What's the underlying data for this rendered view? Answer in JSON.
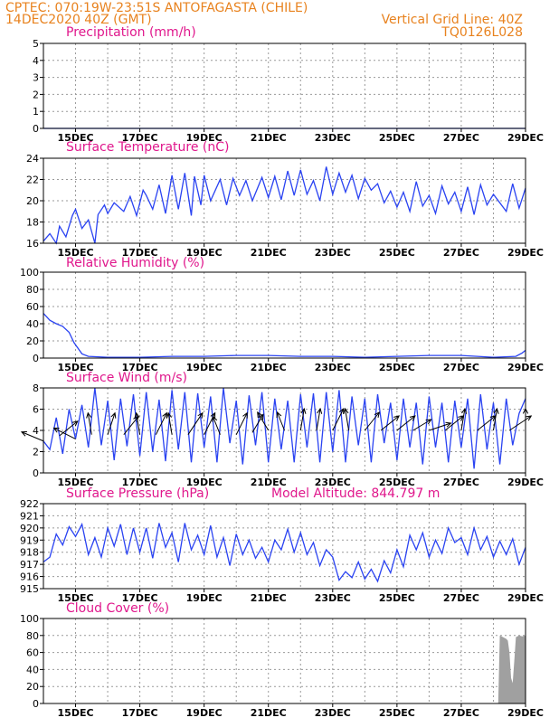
{
  "header": {
    "line1_left": "CPTEC:   070:19W-23:51S   ANTOFAGASTA (CHILE)",
    "line2_left": "14DEC2020 40Z (GMT)",
    "line1_right": "Vertical Grid Line: 40Z",
    "line2_right": "TQ0126L028"
  },
  "colors": {
    "header": "#e8821e",
    "title": "#e0178c",
    "series": "#2a43f2",
    "cloud": "#a0a0a0"
  },
  "x_axis": {
    "start_day": 14.0,
    "end_day": 29.0,
    "tick_labels": [
      "15DEC",
      "17DEC",
      "19DEC",
      "21DEC",
      "23DEC",
      "25DEC",
      "27DEC",
      "29DEC"
    ],
    "grid_step_days": 1
  },
  "chart_data": [
    {
      "type": "line",
      "title": "Precipitation (mm/h)",
      "ylim": [
        0,
        5
      ],
      "yticks": [
        "0",
        "1",
        "2",
        "3",
        "4",
        "5"
      ],
      "x": [
        14,
        29
      ],
      "values": [
        0,
        0
      ]
    },
    {
      "type": "line",
      "title": "Surface Temperature (nC)",
      "ylim": [
        16,
        24
      ],
      "yticks": [
        "16",
        "18",
        "20",
        "22",
        "24"
      ],
      "x": [
        14.0,
        14.2,
        14.4,
        14.5,
        14.7,
        14.9,
        15.0,
        15.2,
        15.4,
        15.6,
        15.7,
        15.9,
        16.0,
        16.2,
        16.5,
        16.7,
        16.9,
        17.1,
        17.2,
        17.4,
        17.6,
        17.8,
        18.0,
        18.2,
        18.4,
        18.6,
        18.7,
        18.9,
        19.0,
        19.2,
        19.5,
        19.7,
        19.9,
        20.1,
        20.3,
        20.5,
        20.8,
        21.0,
        21.2,
        21.4,
        21.6,
        21.8,
        22.0,
        22.2,
        22.4,
        22.6,
        22.8,
        23.0,
        23.2,
        23.4,
        23.6,
        23.8,
        24.0,
        24.2,
        24.4,
        24.6,
        24.8,
        25.0,
        25.2,
        25.4,
        25.6,
        25.8,
        26.0,
        26.2,
        26.4,
        26.6,
        26.8,
        27.0,
        27.2,
        27.4,
        27.6,
        27.8,
        28.0,
        28.2,
        28.4,
        28.6,
        28.8,
        29.0
      ],
      "values": [
        16.2,
        16.9,
        16.0,
        17.6,
        16.6,
        18.6,
        19.2,
        17.4,
        18.2,
        16.0,
        18.7,
        19.6,
        18.8,
        19.8,
        19.0,
        20.4,
        18.6,
        21.0,
        20.5,
        19.2,
        21.5,
        18.8,
        22.4,
        19.2,
        22.6,
        18.6,
        22.3,
        19.6,
        22.4,
        20.0,
        22.0,
        19.6,
        22.1,
        20.5,
        21.9,
        20.0,
        22.2,
        20.3,
        22.3,
        20.1,
        22.8,
        20.5,
        22.9,
        20.6,
        21.9,
        20.0,
        23.2,
        20.6,
        22.6,
        20.8,
        22.4,
        20.2,
        22.1,
        21.0,
        21.6,
        19.8,
        20.9,
        19.4,
        20.8,
        19.0,
        21.8,
        19.5,
        20.5,
        18.8,
        21.4,
        19.7,
        20.8,
        19.0,
        21.3,
        18.7,
        21.5,
        19.6,
        20.6,
        19.8,
        19.0,
        21.6,
        19.3,
        21.2
      ]
    },
    {
      "type": "line",
      "title": "Relative Humidity (%)",
      "ylim": [
        0,
        100
      ],
      "yticks": [
        "0",
        "20",
        "40",
        "60",
        "80",
        "100"
      ],
      "x": [
        14.0,
        14.2,
        14.4,
        14.6,
        14.8,
        14.95,
        15.2,
        15.4,
        16.0,
        17.0,
        18.0,
        19.0,
        20.0,
        21.0,
        22.0,
        23.0,
        24.0,
        25.0,
        26.0,
        27.0,
        28.0,
        28.7,
        28.9,
        29.0
      ],
      "values": [
        52,
        44,
        40,
        37,
        30,
        18,
        5,
        2,
        1,
        1,
        2,
        2,
        3,
        3,
        2,
        2,
        1,
        2,
        3,
        3,
        1,
        2,
        6,
        9
      ]
    },
    {
      "type": "line",
      "title": "Surface Wind (m/s)",
      "ylim": [
        0,
        8
      ],
      "yticks": [
        "0",
        "2",
        "4",
        "6",
        "8"
      ],
      "x": [
        14.0,
        14.2,
        14.4,
        14.6,
        14.8,
        15.0,
        15.2,
        15.4,
        15.6,
        15.8,
        16.0,
        16.2,
        16.4,
        16.6,
        16.8,
        17.0,
        17.2,
        17.4,
        17.6,
        17.8,
        18.0,
        18.2,
        18.4,
        18.6,
        18.8,
        19.0,
        19.2,
        19.4,
        19.6,
        19.8,
        20.0,
        20.2,
        20.4,
        20.6,
        20.8,
        21.0,
        21.2,
        21.4,
        21.6,
        21.8,
        22.0,
        22.2,
        22.4,
        22.6,
        22.8,
        23.0,
        23.2,
        23.4,
        23.6,
        23.8,
        24.0,
        24.2,
        24.4,
        24.6,
        24.8,
        25.0,
        25.2,
        25.4,
        25.6,
        25.8,
        26.0,
        26.2,
        26.4,
        26.6,
        26.8,
        27.0,
        27.2,
        27.4,
        27.6,
        27.8,
        28.0,
        28.2,
        28.4,
        28.6,
        28.8,
        29.0
      ],
      "values": [
        3.0,
        2.2,
        5.2,
        1.8,
        6.0,
        3.2,
        6.4,
        2.4,
        8.0,
        2.6,
        6.8,
        1.2,
        7.0,
        2.5,
        7.4,
        1.6,
        7.6,
        2.0,
        6.9,
        1.1,
        7.8,
        2.2,
        7.6,
        1.0,
        7.5,
        2.4,
        7.2,
        1.0,
        8.0,
        2.8,
        6.8,
        0.8,
        7.3,
        2.6,
        7.6,
        1.0,
        7.0,
        2.2,
        6.8,
        1.0,
        7.4,
        2.4,
        7.5,
        1.0,
        7.6,
        2.0,
        7.8,
        1.0,
        7.2,
        2.6,
        7.0,
        1.0,
        7.4,
        2.8,
        6.6,
        1.2,
        7.0,
        2.4,
        6.6,
        0.8,
        7.2,
        2.4,
        6.6,
        1.0,
        6.8,
        2.4,
        7.0,
        0.4,
        7.4,
        2.2,
        6.6,
        0.8,
        7.0,
        2.6,
        5.6,
        7.0
      ],
      "vectors": [
        {
          "x": 14.0,
          "y": 3.0,
          "u": -0.6,
          "v": 0.25
        },
        {
          "x": 14.5,
          "y": 3.5,
          "u": 0.5,
          "v": 0.4
        },
        {
          "x": 15.0,
          "y": 3.2,
          "u": -0.6,
          "v": 0.3
        },
        {
          "x": 15.5,
          "y": 3.6,
          "u": -0.1,
          "v": 0.6
        },
        {
          "x": 16.0,
          "y": 3.6,
          "u": 0.2,
          "v": 0.6
        },
        {
          "x": 16.5,
          "y": 3.6,
          "u": 0.4,
          "v": 0.5
        },
        {
          "x": 17.0,
          "y": 3.6,
          "u": -0.1,
          "v": 0.6
        },
        {
          "x": 17.5,
          "y": 3.6,
          "u": 0.3,
          "v": 0.6
        },
        {
          "x": 18.0,
          "y": 3.6,
          "u": -0.1,
          "v": 0.6
        },
        {
          "x": 18.5,
          "y": 3.6,
          "u": 0.4,
          "v": 0.6
        },
        {
          "x": 19.0,
          "y": 3.6,
          "u": 0.3,
          "v": 0.6
        },
        {
          "x": 19.5,
          "y": 3.6,
          "u": -0.2,
          "v": 0.5
        },
        {
          "x": 20.0,
          "y": 3.6,
          "u": 0.3,
          "v": 0.6
        },
        {
          "x": 20.5,
          "y": 3.8,
          "u": 0.3,
          "v": 0.5
        },
        {
          "x": 21.0,
          "y": 4.0,
          "u": -0.3,
          "v": 0.5
        },
        {
          "x": 21.5,
          "y": 4.0,
          "u": -0.2,
          "v": 0.5
        },
        {
          "x": 22.0,
          "y": 4.0,
          "u": 0.1,
          "v": 0.6
        },
        {
          "x": 22.5,
          "y": 4.0,
          "u": 0.1,
          "v": 0.6
        },
        {
          "x": 23.0,
          "y": 4.0,
          "u": 0.3,
          "v": 0.6
        },
        {
          "x": 23.5,
          "y": 4.0,
          "u": -0.1,
          "v": 0.6
        },
        {
          "x": 24.0,
          "y": 4.0,
          "u": 0.4,
          "v": 0.5
        },
        {
          "x": 24.5,
          "y": 4.0,
          "u": 0.5,
          "v": 0.4
        },
        {
          "x": 25.0,
          "y": 4.0,
          "u": 0.5,
          "v": 0.4
        },
        {
          "x": 25.5,
          "y": 4.0,
          "u": 0.5,
          "v": 0.3
        },
        {
          "x": 26.0,
          "y": 4.0,
          "u": 0.6,
          "v": 0.2
        },
        {
          "x": 26.5,
          "y": 4.0,
          "u": 0.5,
          "v": 0.4
        },
        {
          "x": 27.0,
          "y": 4.0,
          "u": 0.1,
          "v": 0.6
        },
        {
          "x": 27.5,
          "y": 4.0,
          "u": 0.5,
          "v": 0.4
        },
        {
          "x": 28.0,
          "y": 4.0,
          "u": 0.1,
          "v": 0.6
        },
        {
          "x": 28.5,
          "y": 4.0,
          "u": 0.6,
          "v": 0.4
        },
        {
          "x": 29.0,
          "y": 4.0,
          "u": 0.0,
          "v": 0.6
        }
      ]
    },
    {
      "type": "line",
      "title": "Surface Pressure (hPa)",
      "subtitle": "Model Altitude: 844.797 m",
      "ylim": [
        915,
        922
      ],
      "yticks": [
        "915",
        "916",
        "917",
        "918",
        "919",
        "920",
        "921",
        "922"
      ],
      "x": [
        14.0,
        14.2,
        14.4,
        14.6,
        14.8,
        15.0,
        15.2,
        15.4,
        15.6,
        15.8,
        16.0,
        16.2,
        16.4,
        16.6,
        16.8,
        17.0,
        17.2,
        17.4,
        17.6,
        17.8,
        18.0,
        18.2,
        18.4,
        18.6,
        18.8,
        19.0,
        19.2,
        19.4,
        19.6,
        19.8,
        20.0,
        20.2,
        20.4,
        20.6,
        20.8,
        21.0,
        21.2,
        21.4,
        21.6,
        21.8,
        22.0,
        22.2,
        22.4,
        22.6,
        22.8,
        23.0,
        23.2,
        23.4,
        23.6,
        23.8,
        24.0,
        24.2,
        24.4,
        24.6,
        24.8,
        25.0,
        25.2,
        25.4,
        25.6,
        25.8,
        26.0,
        26.2,
        26.4,
        26.6,
        26.8,
        27.0,
        27.2,
        27.4,
        27.6,
        27.8,
        28.0,
        28.2,
        28.4,
        28.6,
        28.8,
        29.0
      ],
      "values": [
        917.2,
        917.6,
        919.5,
        918.6,
        920.1,
        919.3,
        920.3,
        917.8,
        919.2,
        917.6,
        920.0,
        918.5,
        920.3,
        917.8,
        920.0,
        918.0,
        920.0,
        917.5,
        920.4,
        918.4,
        919.6,
        917.2,
        920.4,
        918.2,
        919.4,
        917.8,
        920.2,
        917.6,
        919.2,
        916.9,
        919.5,
        917.8,
        919.0,
        917.5,
        918.4,
        917.2,
        919.0,
        918.2,
        919.9,
        918.0,
        919.6,
        917.8,
        918.8,
        916.9,
        918.2,
        917.6,
        915.7,
        916.4,
        915.9,
        917.2,
        915.8,
        916.6,
        915.6,
        917.3,
        916.3,
        918.2,
        916.8,
        919.4,
        918.2,
        919.6,
        917.6,
        919.0,
        917.9,
        920.0,
        918.8,
        919.2,
        917.8,
        920.0,
        918.2,
        919.3,
        917.6,
        918.9,
        917.8,
        919.1,
        917.0,
        918.4
      ]
    },
    {
      "type": "area",
      "title": "Cloud Cover (%)",
      "ylim": [
        0,
        100
      ],
      "yticks": [
        "0",
        "20",
        "40",
        "60",
        "80",
        "100"
      ],
      "x": [
        14.0,
        28.15,
        28.2,
        28.3,
        28.4,
        28.45,
        28.5,
        28.55,
        28.6,
        28.65,
        28.7,
        28.8,
        28.9,
        29.0
      ],
      "values": [
        0,
        0,
        80,
        78,
        76,
        74,
        60,
        30,
        24,
        50,
        78,
        80,
        79,
        80
      ]
    }
  ]
}
